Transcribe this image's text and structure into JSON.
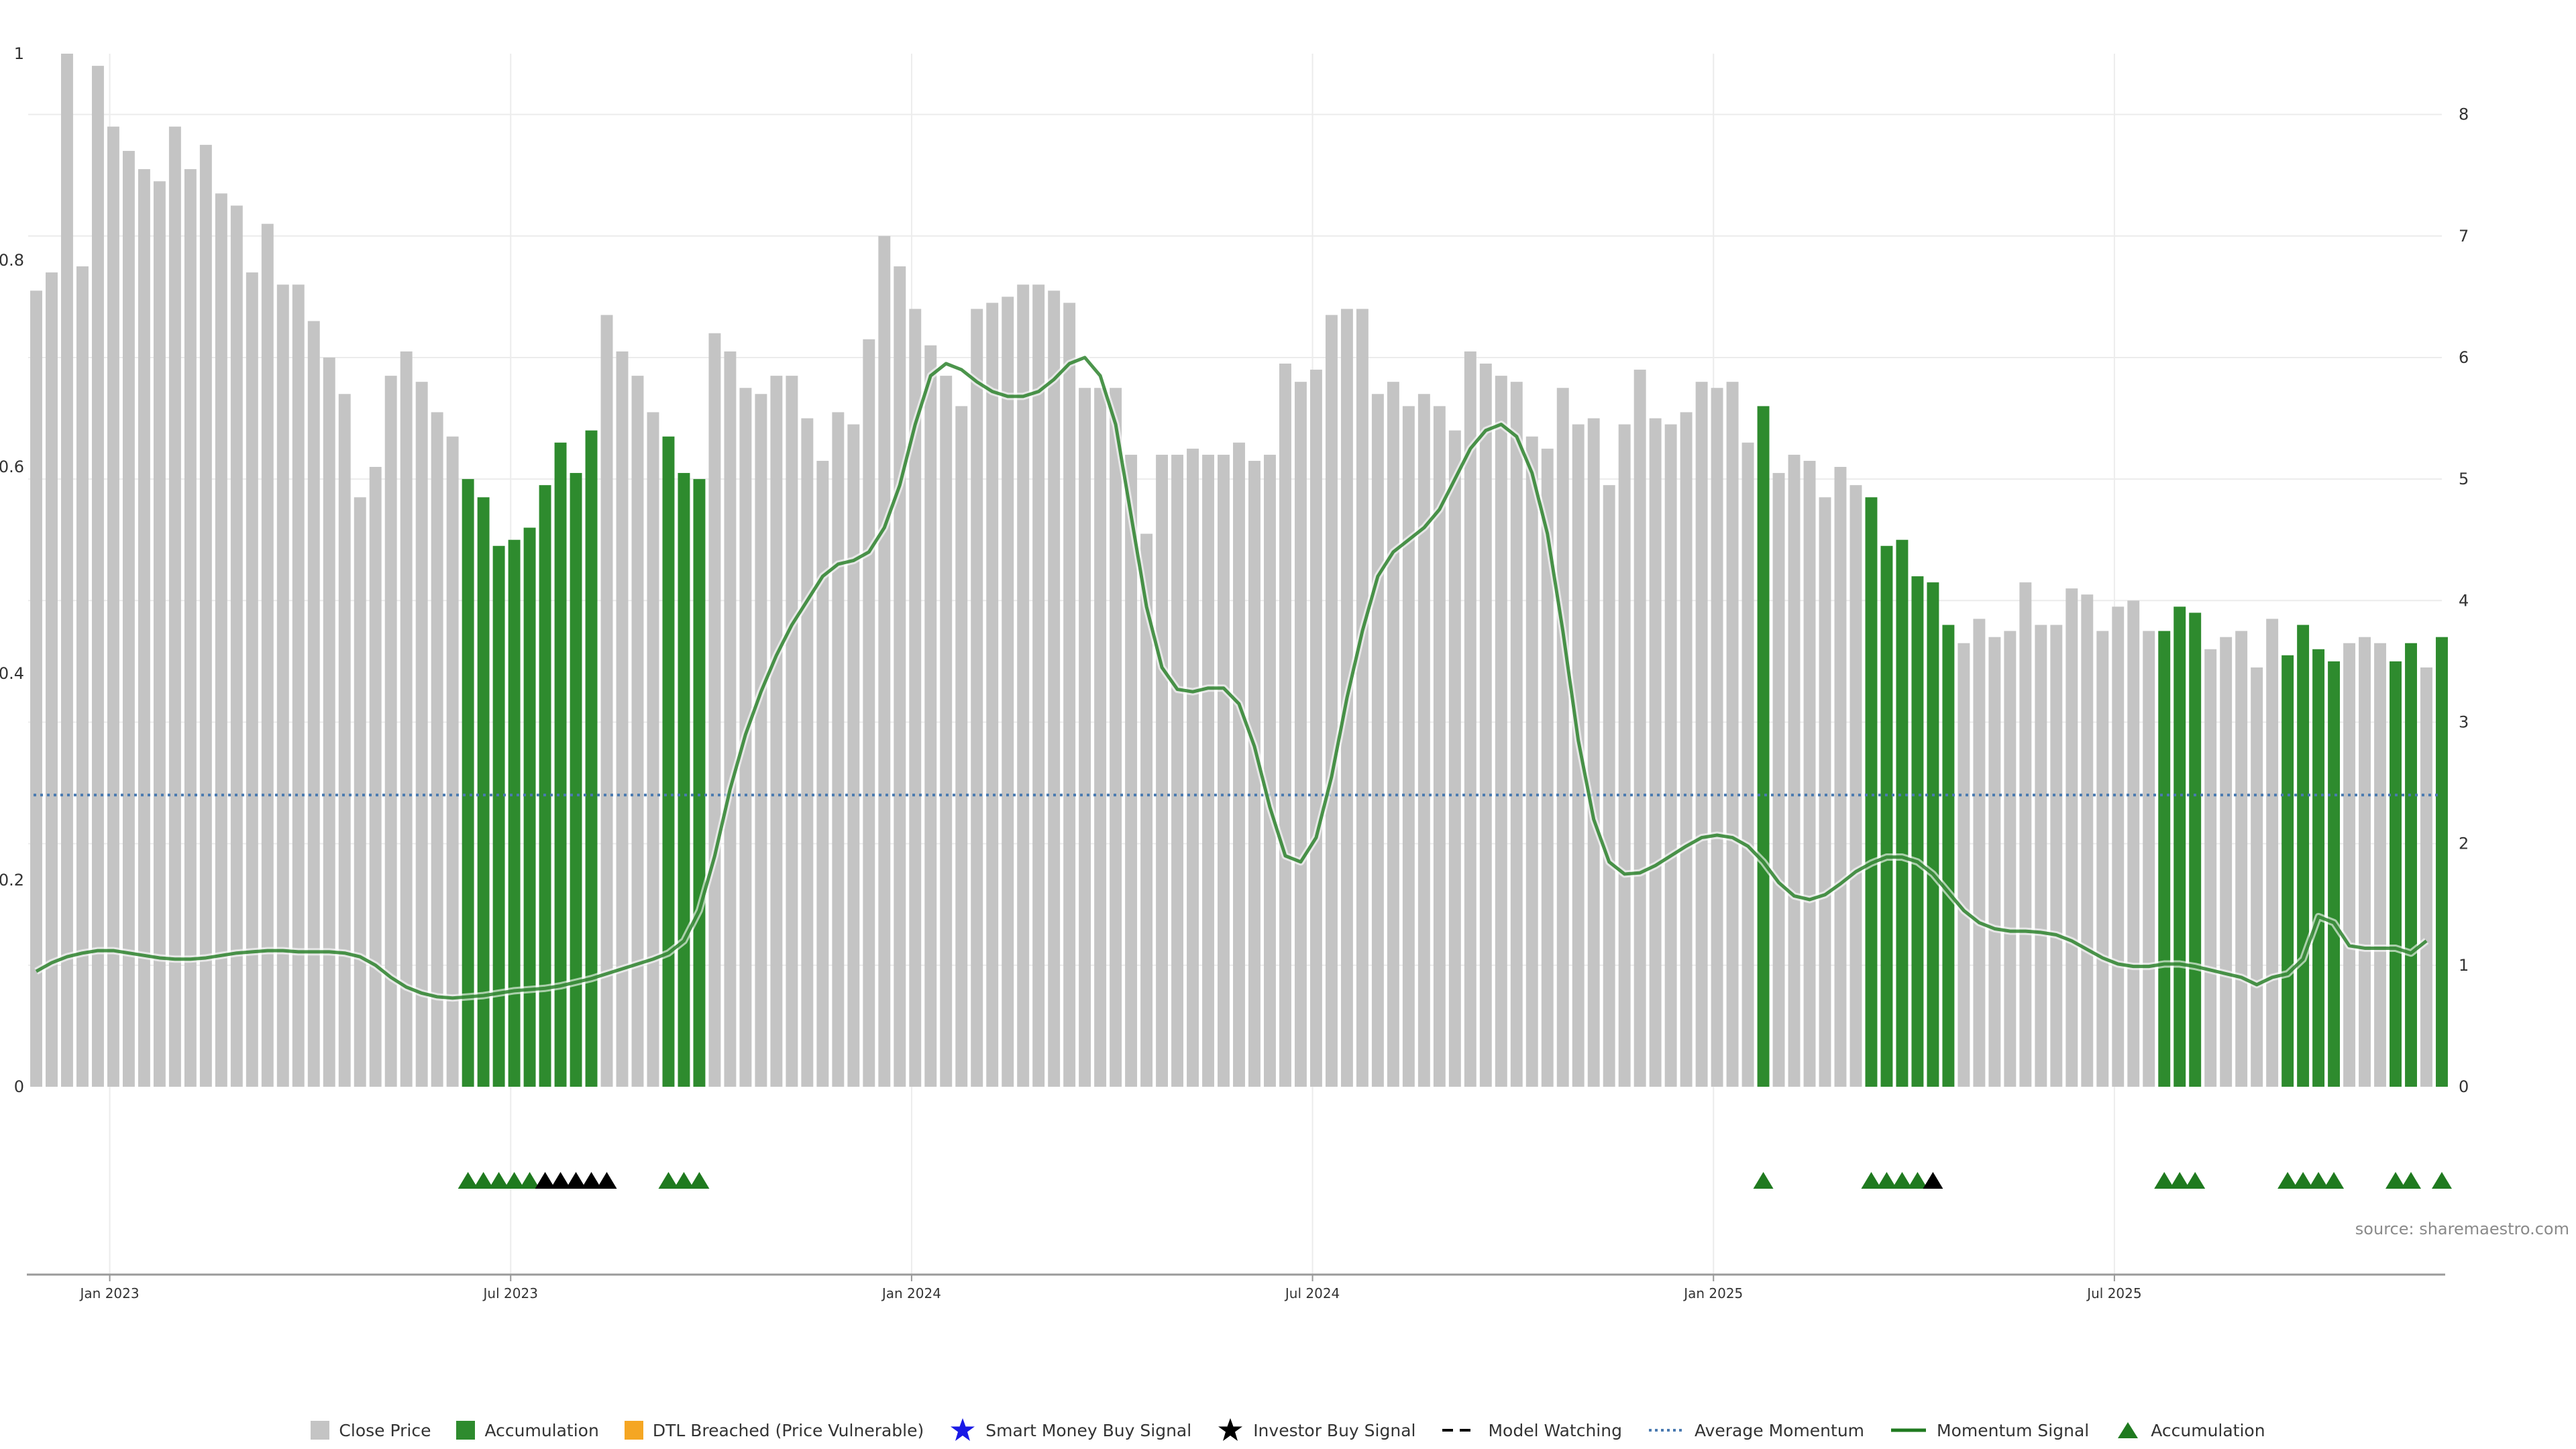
{
  "colors": {
    "close_price": "#c4c4c4",
    "accumulation": "#2e8b2e",
    "dtl_breached": "#f5a623",
    "smart_money": "#1a1ae6",
    "investor": "#000000",
    "average_momentum": "#4a7ab0",
    "momentum_signal": "#1f7a1f",
    "momentum_signal_strong": "#0a6e0a",
    "accumulation_marker": "#1f7a1f",
    "grid": "#ececec",
    "axis": "#9a9a9a"
  },
  "source": "source: sharemaestro.com",
  "legend": [
    {
      "label": "Close Price",
      "kind": "square",
      "color_key": "close_price"
    },
    {
      "label": "Accumulation",
      "kind": "square",
      "color_key": "accumulation"
    },
    {
      "label": "DTL Breached (Price Vulnerable)",
      "kind": "square",
      "color_key": "dtl_breached"
    },
    {
      "label": "Smart Money Buy Signal",
      "kind": "star",
      "color_key": "smart_money"
    },
    {
      "label": "Investor Buy Signal",
      "kind": "star",
      "color_key": "investor"
    },
    {
      "label": "Model Watching",
      "kind": "dash",
      "color_key": "investor"
    },
    {
      "label": "Average Momentum",
      "kind": "dotted",
      "color_key": "average_momentum"
    },
    {
      "label": "Momentum Signal",
      "kind": "line",
      "color_key": "momentum_signal"
    },
    {
      "label": "Accumulation",
      "kind": "triangle",
      "color_key": "accumulation_marker"
    }
  ],
  "chart_data": {
    "type": "bar",
    "title": "",
    "xlabel": "",
    "ylabel": "",
    "x_ticks": [
      "Jan 2023",
      "Jul 2023",
      "Jan 2024",
      "Jul 2024",
      "Jan 2025",
      "Jul 2025"
    ],
    "y_left": {
      "ylim": [
        0,
        1
      ],
      "ticks": [
        "0",
        "0.2",
        "0.4",
        "0.6",
        "0.8",
        "1"
      ]
    },
    "y_right": {
      "ylim": [
        0,
        8.5
      ],
      "ticks": [
        "0",
        "1",
        "2",
        "3",
        "4",
        "5",
        "6",
        "7",
        "8"
      ]
    },
    "grid": true,
    "legend_position": "bottom",
    "bars": {
      "name": "Close Price",
      "axis": "right",
      "values": [
        6.55,
        6.7,
        8.5,
        6.75,
        8.4,
        7.9,
        7.7,
        7.55,
        7.45,
        7.9,
        7.55,
        7.75,
        7.35,
        7.25,
        6.7,
        7.1,
        6.6,
        6.6,
        6.3,
        6.0,
        5.7,
        4.85,
        5.1,
        5.85,
        6.05,
        5.8,
        5.55,
        5.35,
        5.0,
        4.85,
        4.45,
        4.5,
        4.6,
        4.95,
        5.3,
        5.05,
        5.4,
        6.35,
        6.05,
        5.85,
        5.55,
        5.35,
        5.05,
        5.0,
        6.2,
        6.05,
        5.75,
        5.7,
        5.85,
        5.85,
        5.5,
        5.15,
        5.55,
        5.45,
        6.15,
        7.0,
        6.75,
        6.4,
        6.1,
        5.85,
        5.6,
        6.4,
        6.45,
        6.5,
        6.6,
        6.6,
        6.55,
        6.45,
        5.75,
        5.75,
        5.75,
        5.2,
        4.55,
        5.2,
        5.2,
        5.25,
        5.2,
        5.2,
        5.3,
        5.15,
        5.2,
        5.95,
        5.8,
        5.9,
        6.35,
        6.4,
        6.4,
        5.7,
        5.8,
        5.6,
        5.7,
        5.6,
        5.4,
        6.05,
        5.95,
        5.85,
        5.8,
        5.35,
        5.25,
        5.75,
        5.45,
        5.5,
        4.95,
        5.45,
        5.9,
        5.5,
        5.45,
        5.55,
        5.8,
        5.75,
        5.8,
        5.3,
        5.6,
        5.05,
        5.2,
        5.15,
        4.85,
        5.1,
        4.95,
        4.85,
        4.45,
        4.5,
        4.2,
        4.15,
        3.8,
        3.65,
        3.85,
        3.7,
        3.75,
        4.15,
        3.8,
        3.8,
        4.1,
        4.05,
        3.75,
        3.95,
        4.0,
        3.75,
        3.75,
        3.95,
        3.9,
        3.6,
        3.7,
        3.75,
        3.45,
        3.85,
        3.55,
        3.8,
        3.6,
        3.5,
        3.65,
        3.7,
        3.65,
        3.5,
        3.65,
        3.45,
        3.7
      ],
      "accumulation_indices": [
        28,
        29,
        30,
        31,
        32,
        33,
        34,
        35,
        36,
        41,
        42,
        43,
        112,
        119,
        120,
        121,
        122,
        123,
        124,
        138,
        139,
        140,
        146,
        147,
        148,
        149,
        153,
        154,
        156
      ]
    },
    "series": [
      {
        "name": "Momentum Signal",
        "axis": "right",
        "values": [
          0.95,
          1.02,
          1.07,
          1.1,
          1.12,
          1.12,
          1.1,
          1.08,
          1.06,
          1.05,
          1.05,
          1.06,
          1.08,
          1.1,
          1.11,
          1.12,
          1.12,
          1.11,
          1.11,
          1.11,
          1.1,
          1.07,
          1.0,
          0.9,
          0.82,
          0.77,
          0.74,
          0.73,
          0.74,
          0.75,
          0.77,
          0.79,
          0.8,
          0.81,
          0.83,
          0.86,
          0.89,
          0.93,
          0.97,
          1.01,
          1.05,
          1.1,
          1.2,
          1.45,
          1.9,
          2.45,
          2.9,
          3.25,
          3.55,
          3.8,
          4.0,
          4.2,
          4.3,
          4.33,
          4.4,
          4.6,
          4.95,
          5.45,
          5.85,
          5.95,
          5.9,
          5.8,
          5.72,
          5.68,
          5.68,
          5.72,
          5.82,
          5.95,
          6.0,
          5.85,
          5.45,
          4.7,
          3.95,
          3.45,
          3.27,
          3.25,
          3.28,
          3.28,
          3.15,
          2.8,
          2.3,
          1.9,
          1.85,
          2.05,
          2.55,
          3.2,
          3.75,
          4.2,
          4.4,
          4.5,
          4.6,
          4.75,
          5.0,
          5.25,
          5.4,
          5.45,
          5.35,
          5.05,
          4.55,
          3.75,
          2.85,
          2.2,
          1.85,
          1.75,
          1.76,
          1.82,
          1.9,
          1.98,
          2.05,
          2.07,
          2.05,
          1.98,
          1.85,
          1.68,
          1.57,
          1.54,
          1.58,
          1.67,
          1.77,
          1.84,
          1.89,
          1.89,
          1.85,
          1.75,
          1.6,
          1.45,
          1.35,
          1.3,
          1.28,
          1.28,
          1.27,
          1.25,
          1.2,
          1.13,
          1.06,
          1.01,
          0.99,
          0.99,
          1.01,
          1.01,
          0.99,
          0.96,
          0.93,
          0.9,
          0.84,
          0.9,
          0.93,
          1.05,
          1.4,
          1.35,
          1.16,
          1.14,
          1.14,
          1.14,
          1.1,
          1.2
        ]
      },
      {
        "name": "Average Momentum",
        "axis": "right",
        "value": 2.4
      }
    ],
    "markers": {
      "accumulation_indices": [
        28,
        29,
        30,
        31,
        32,
        41,
        42,
        43,
        112,
        119,
        120,
        121,
        122,
        138,
        139,
        140,
        146,
        147,
        148,
        149,
        153,
        154,
        156
      ],
      "investor_buy_indices": [
        33,
        34,
        35,
        36,
        37,
        123
      ]
    }
  }
}
